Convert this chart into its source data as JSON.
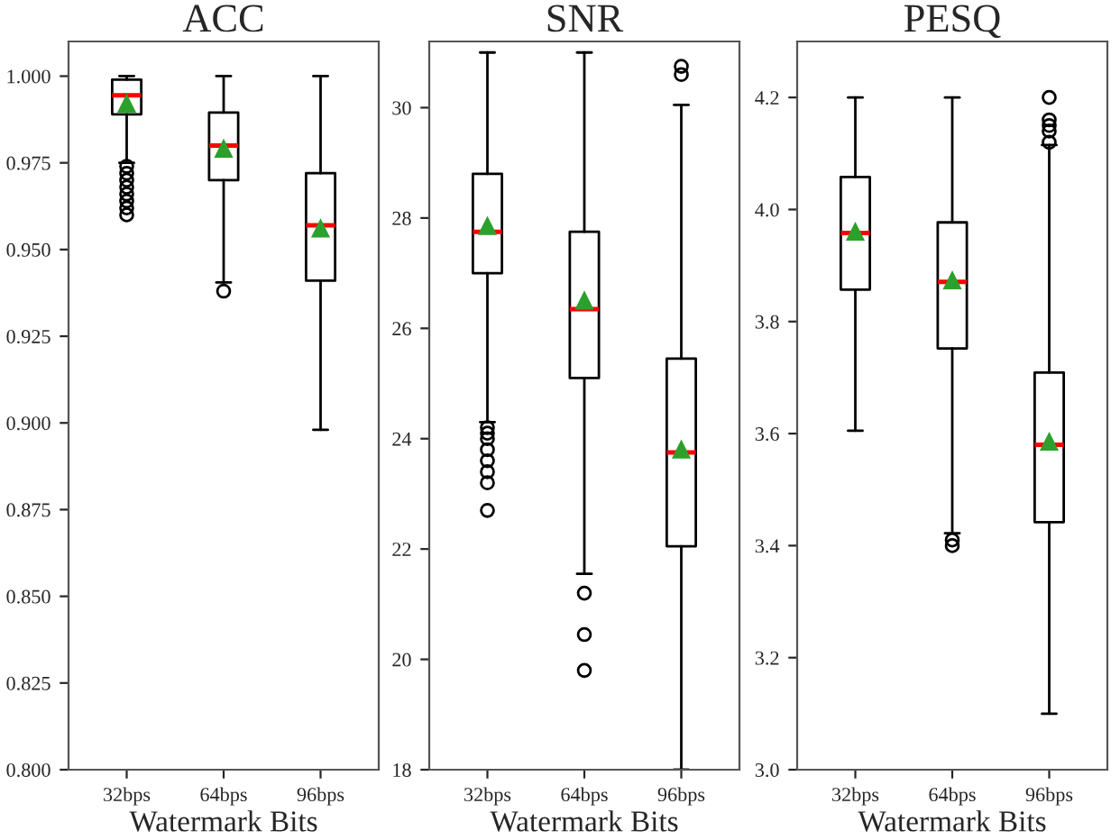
{
  "chart_data": [
    {
      "type": "box",
      "title": "ACC",
      "xlabel": "Watermark Bits",
      "categories": [
        "32bps",
        "64bps",
        "96bps"
      ],
      "ylim": [
        0.8,
        1.01
      ],
      "yticks": [
        {
          "value": 0.8,
          "label": "0.800"
        },
        {
          "value": 0.825,
          "label": "0.825"
        },
        {
          "value": 0.85,
          "label": "0.850"
        },
        {
          "value": 0.875,
          "label": "0.875"
        },
        {
          "value": 0.9,
          "label": "0.900"
        },
        {
          "value": 0.925,
          "label": "0.925"
        },
        {
          "value": 0.95,
          "label": "0.950"
        },
        {
          "value": 0.975,
          "label": "0.975"
        },
        {
          "value": 1.0,
          "label": "1.000"
        }
      ],
      "boxes": [
        {
          "low": 0.975,
          "q1": 0.989,
          "median": 0.9945,
          "q3": 0.999,
          "high": 1.0,
          "mean": 0.992,
          "outliers": [
            0.974,
            0.972,
            0.97,
            0.968,
            0.966,
            0.964,
            0.962,
            0.96
          ]
        },
        {
          "low": 0.9405,
          "q1": 0.97,
          "median": 0.98,
          "q3": 0.9895,
          "high": 1.0,
          "mean": 0.979,
          "outliers": [
            0.938
          ]
        },
        {
          "low": 0.898,
          "q1": 0.941,
          "median": 0.957,
          "q3": 0.972,
          "high": 1.0,
          "mean": 0.956
        }
      ]
    },
    {
      "type": "box",
      "title": "SNR",
      "xlabel": "Watermark Bits",
      "categories": [
        "32bps",
        "64bps",
        "96bps"
      ],
      "ylim": [
        18,
        31.2
      ],
      "yticks": [
        18,
        20,
        22,
        24,
        26,
        28,
        30
      ],
      "boxes": [
        {
          "low": 24.3,
          "q1": 27.0,
          "median": 27.75,
          "q3": 28.8,
          "high": 31.0,
          "mean": 27.85,
          "outliers": [
            24.2,
            24.1,
            24.0,
            23.8,
            23.6,
            23.4,
            23.2,
            22.7
          ]
        },
        {
          "low": 21.55,
          "q1": 25.1,
          "median": 26.35,
          "q3": 27.75,
          "high": 31.0,
          "mean": 26.5,
          "outliers": [
            21.2,
            20.45,
            19.8
          ]
        },
        {
          "low": 18.0,
          "q1": 22.05,
          "median": 23.75,
          "q3": 25.45,
          "high": 30.05,
          "mean": 23.8,
          "outliers": [
            30.6,
            30.75
          ]
        }
      ]
    },
    {
      "type": "box",
      "title": "PESQ",
      "xlabel": "Watermark Bits",
      "categories": [
        "32bps",
        "64bps",
        "96bps"
      ],
      "ylim": [
        3.0,
        4.3
      ],
      "yticks": [
        {
          "value": 3.0,
          "label": "3.0"
        },
        {
          "value": 3.2,
          "label": "3.2"
        },
        {
          "value": 3.4,
          "label": "3.4"
        },
        {
          "value": 3.6,
          "label": "3.6"
        },
        {
          "value": 3.8,
          "label": "3.8"
        },
        {
          "value": 4.0,
          "label": "4.0"
        },
        {
          "value": 4.2,
          "label": "4.2"
        }
      ],
      "boxes": [
        {
          "low": 3.605,
          "q1": 3.857,
          "median": 3.958,
          "q3": 4.058,
          "high": 4.2,
          "mean": 3.96
        },
        {
          "low": 3.422,
          "q1": 3.752,
          "median": 3.871,
          "q3": 3.977,
          "high": 4.2,
          "mean": 3.873,
          "outliers": [
            3.41,
            3.4
          ]
        },
        {
          "low": 3.1,
          "q1": 3.442,
          "median": 3.58,
          "q3": 3.709,
          "high": 4.115,
          "mean": 3.585,
          "outliers": [
            4.12,
            4.14,
            4.15,
            4.16,
            4.2
          ]
        }
      ]
    }
  ]
}
